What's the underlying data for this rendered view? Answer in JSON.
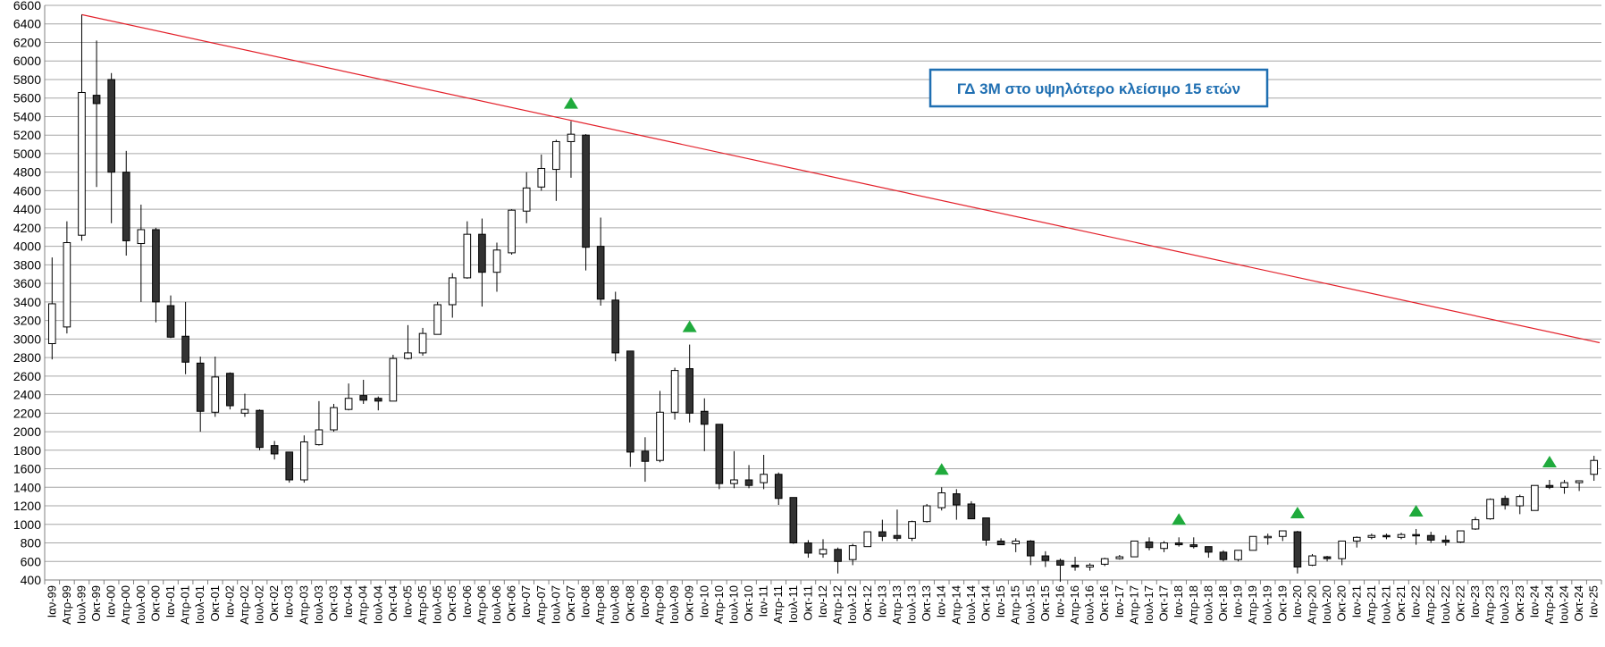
{
  "chart_data": {
    "type": "candlestick",
    "title": "",
    "xlabel": "",
    "ylabel": "",
    "ylim": [
      400,
      6600
    ],
    "y_ticks": [
      400,
      600,
      800,
      1000,
      1200,
      1400,
      1600,
      1800,
      2000,
      2200,
      2400,
      2600,
      2800,
      3000,
      3200,
      3400,
      3600,
      3800,
      4000,
      4200,
      4400,
      4600,
      4800,
      5000,
      5200,
      5400,
      5600,
      5800,
      6000,
      6200,
      6400,
      6600
    ],
    "grid": true,
    "legend": "none",
    "colors": {
      "up": "#ffffff",
      "down": "#333333",
      "outline": "#000000",
      "trendline": "#e3202a",
      "marker": "#1faa3c",
      "annotation_border": "#1f6fb2",
      "annotation_text": "#1f6fb2",
      "grid": "#a6a6a6"
    },
    "categories": [
      "Ιαν-99",
      "Απρ-99",
      "Ιουλ-99",
      "Οκτ-99",
      "Ιαν-00",
      "Απρ-00",
      "Ιουλ-00",
      "Οκτ-00",
      "Ιαν-01",
      "Απρ-01",
      "Ιουλ-01",
      "Οκτ-01",
      "Ιαν-02",
      "Απρ-02",
      "Ιουλ-02",
      "Οκτ-02",
      "Ιαν-03",
      "Απρ-03",
      "Ιουλ-03",
      "Οκτ-03",
      "Ιαν-04",
      "Απρ-04",
      "Ιουλ-04",
      "Οκτ-04",
      "Ιαν-05",
      "Απρ-05",
      "Ιουλ-05",
      "Οκτ-05",
      "Ιαν-06",
      "Απρ-06",
      "Ιουλ-06",
      "Οκτ-06",
      "Ιαν-07",
      "Απρ-07",
      "Ιουλ-07",
      "Οκτ-07",
      "Ιαν-08",
      "Απρ-08",
      "Ιουλ-08",
      "Οκτ-08",
      "Ιαν-09",
      "Απρ-09",
      "Ιουλ-09",
      "Οκτ-09",
      "Ιαν-10",
      "Απρ-10",
      "Ιουλ-10",
      "Οκτ-10",
      "Ιαν-11",
      "Απρ-11",
      "Ιουλ-11",
      "Οκτ-11",
      "Ιαν-12",
      "Απρ-12",
      "Ιουλ-12",
      "Οκτ-12",
      "Ιαν-13",
      "Απρ-13",
      "Ιουλ-13",
      "Οκτ-13",
      "Ιαν-14",
      "Απρ-14",
      "Ιουλ-14",
      "Οκτ-14",
      "Ιαν-15",
      "Απρ-15",
      "Ιουλ-15",
      "Οκτ-15",
      "Ιαν-16",
      "Απρ-16",
      "Ιουλ-16",
      "Οκτ-16",
      "Ιαν-17",
      "Απρ-17",
      "Ιουλ-17",
      "Οκτ-17",
      "Ιαν-18",
      "Απρ-18",
      "Ιουλ-18",
      "Οκτ-18",
      "Ιαν-19",
      "Απρ-19",
      "Ιουλ-19",
      "Οκτ-19",
      "Ιαν-20",
      "Απρ-20",
      "Ιουλ-20",
      "Οκτ-20",
      "Ιαν-21",
      "Απρ-21",
      "Ιουλ-21",
      "Οκτ-21",
      "Ιαν-22",
      "Απρ-22",
      "Ιουλ-22",
      "Οκτ-22",
      "Ιαν-23",
      "Απρ-23",
      "Ιουλ-23",
      "Οκτ-23",
      "Ιαν-24",
      "Απρ-24",
      "Ιουλ-24",
      "Οκτ-24",
      "Ιαν-25"
    ],
    "ohlc": [
      [
        2950,
        3880,
        2780,
        3380
      ],
      [
        3130,
        4270,
        3060,
        4040
      ],
      [
        4120,
        6500,
        4060,
        5660
      ],
      [
        5630,
        6220,
        4640,
        5540
      ],
      [
        5800,
        5870,
        4250,
        4800
      ],
      [
        4800,
        5030,
        3900,
        4060
      ],
      [
        4030,
        4450,
        3400,
        4180
      ],
      [
        4180,
        4200,
        3180,
        3400
      ],
      [
        3360,
        3470,
        3010,
        3020
      ],
      [
        3030,
        3400,
        2620,
        2750
      ],
      [
        2740,
        2810,
        2000,
        2220
      ],
      [
        2210,
        2810,
        2160,
        2590
      ],
      [
        2630,
        2640,
        2240,
        2280
      ],
      [
        2200,
        2410,
        2160,
        2240
      ],
      [
        2230,
        2240,
        1800,
        1830
      ],
      [
        1850,
        1900,
        1700,
        1760
      ],
      [
        1780,
        1780,
        1450,
        1480
      ],
      [
        1480,
        1960,
        1450,
        1890
      ],
      [
        1860,
        2330,
        1850,
        2020
      ],
      [
        2020,
        2300,
        2000,
        2260
      ],
      [
        2240,
        2520,
        2230,
        2360
      ],
      [
        2390,
        2560,
        2300,
        2340
      ],
      [
        2360,
        2380,
        2230,
        2330
      ],
      [
        2330,
        2830,
        2330,
        2790
      ],
      [
        2790,
        3150,
        2780,
        2850
      ],
      [
        2850,
        3120,
        2820,
        3060
      ],
      [
        3050,
        3400,
        3050,
        3370
      ],
      [
        3370,
        3710,
        3230,
        3660
      ],
      [
        3660,
        4270,
        3650,
        4130
      ],
      [
        4130,
        4300,
        3350,
        3720
      ],
      [
        3720,
        4040,
        3510,
        3960
      ],
      [
        3930,
        4400,
        3910,
        4390
      ],
      [
        4380,
        4800,
        4250,
        4630
      ],
      [
        4640,
        4990,
        4600,
        4840
      ],
      [
        4830,
        5150,
        4490,
        5130
      ],
      [
        5130,
        5350,
        4740,
        5210
      ],
      [
        5200,
        5210,
        3740,
        3990
      ],
      [
        4000,
        4310,
        3360,
        3430
      ],
      [
        3420,
        3510,
        2760,
        2850
      ],
      [
        2870,
        2870,
        1620,
        1780
      ],
      [
        1790,
        1940,
        1460,
        1680
      ],
      [
        1690,
        2440,
        1670,
        2210
      ],
      [
        2210,
        2690,
        2130,
        2660
      ],
      [
        2680,
        2940,
        2100,
        2200
      ],
      [
        2220,
        2360,
        1790,
        2080
      ],
      [
        2080,
        2080,
        1380,
        1440
      ],
      [
        1440,
        1790,
        1390,
        1480
      ],
      [
        1480,
        1640,
        1390,
        1420
      ],
      [
        1450,
        1750,
        1380,
        1540
      ],
      [
        1540,
        1560,
        1210,
        1280
      ],
      [
        1290,
        1290,
        790,
        800
      ],
      [
        800,
        830,
        640,
        690
      ],
      [
        680,
        840,
        640,
        730
      ],
      [
        730,
        750,
        470,
        600
      ],
      [
        620,
        790,
        560,
        770
      ],
      [
        760,
        920,
        760,
        920
      ],
      [
        920,
        1050,
        820,
        870
      ],
      [
        880,
        1160,
        820,
        850
      ],
      [
        850,
        1040,
        820,
        1030
      ],
      [
        1030,
        1220,
        1020,
        1200
      ],
      [
        1180,
        1400,
        1150,
        1340
      ],
      [
        1330,
        1380,
        1050,
        1210
      ],
      [
        1220,
        1250,
        1060,
        1060
      ],
      [
        1070,
        1070,
        770,
        830
      ],
      [
        820,
        850,
        780,
        780
      ],
      [
        790,
        850,
        700,
        820
      ],
      [
        820,
        830,
        560,
        660
      ],
      [
        660,
        710,
        540,
        610
      ],
      [
        610,
        630,
        380,
        560
      ],
      [
        560,
        650,
        500,
        540
      ],
      [
        540,
        580,
        500,
        560
      ],
      [
        570,
        640,
        550,
        630
      ],
      [
        630,
        670,
        620,
        650
      ],
      [
        650,
        820,
        650,
        820
      ],
      [
        810,
        860,
        720,
        750
      ],
      [
        740,
        820,
        700,
        800
      ],
      [
        800,
        860,
        760,
        780
      ],
      [
        780,
        860,
        740,
        760
      ],
      [
        760,
        760,
        640,
        700
      ],
      [
        700,
        720,
        600,
        620
      ],
      [
        620,
        720,
        600,
        720
      ],
      [
        720,
        870,
        720,
        870
      ],
      [
        870,
        900,
        780,
        870
      ],
      [
        870,
        930,
        820,
        930
      ],
      [
        920,
        930,
        470,
        540
      ],
      [
        560,
        680,
        550,
        660
      ],
      [
        650,
        660,
        600,
        630
      ],
      [
        630,
        820,
        560,
        820
      ],
      [
        820,
        870,
        750,
        860
      ],
      [
        860,
        900,
        840,
        880
      ],
      [
        880,
        900,
        840,
        870
      ],
      [
        860,
        910,
        840,
        890
      ],
      [
        890,
        950,
        780,
        880
      ],
      [
        880,
        920,
        800,
        830
      ],
      [
        830,
        880,
        770,
        810
      ],
      [
        810,
        930,
        800,
        930
      ],
      [
        950,
        1080,
        940,
        1050
      ],
      [
        1060,
        1280,
        1050,
        1270
      ],
      [
        1280,
        1310,
        1160,
        1210
      ],
      [
        1200,
        1320,
        1110,
        1300
      ],
      [
        1150,
        1420,
        1150,
        1420
      ],
      [
        1420,
        1480,
        1380,
        1400
      ],
      [
        1400,
        1480,
        1330,
        1450
      ],
      [
        1450,
        1470,
        1360,
        1470
      ],
      [
        1540,
        1740,
        1470,
        1690
      ]
    ],
    "markers": [
      {
        "x": "Οκτ-07",
        "type": "triangle-up"
      },
      {
        "x": "Οκτ-09",
        "type": "triangle-up"
      },
      {
        "x": "Ιαν-14",
        "type": "triangle-up"
      },
      {
        "x": "Ιαν-18",
        "type": "triangle-up"
      },
      {
        "x": "Ιαν-20",
        "type": "triangle-up"
      },
      {
        "x": "Ιαν-22",
        "type": "triangle-up"
      },
      {
        "x": "Απρ-24",
        "type": "triangle-up"
      }
    ],
    "trendline": {
      "start": {
        "x": "Ιουλ-99",
        "y": 6500
      },
      "end": {
        "x": "Ιαν-25",
        "y": 2960
      }
    },
    "annotations": [
      {
        "text": "ΓΔ 3Μ στο υψηλότερο κλείσιμο 15 ετών"
      }
    ]
  }
}
